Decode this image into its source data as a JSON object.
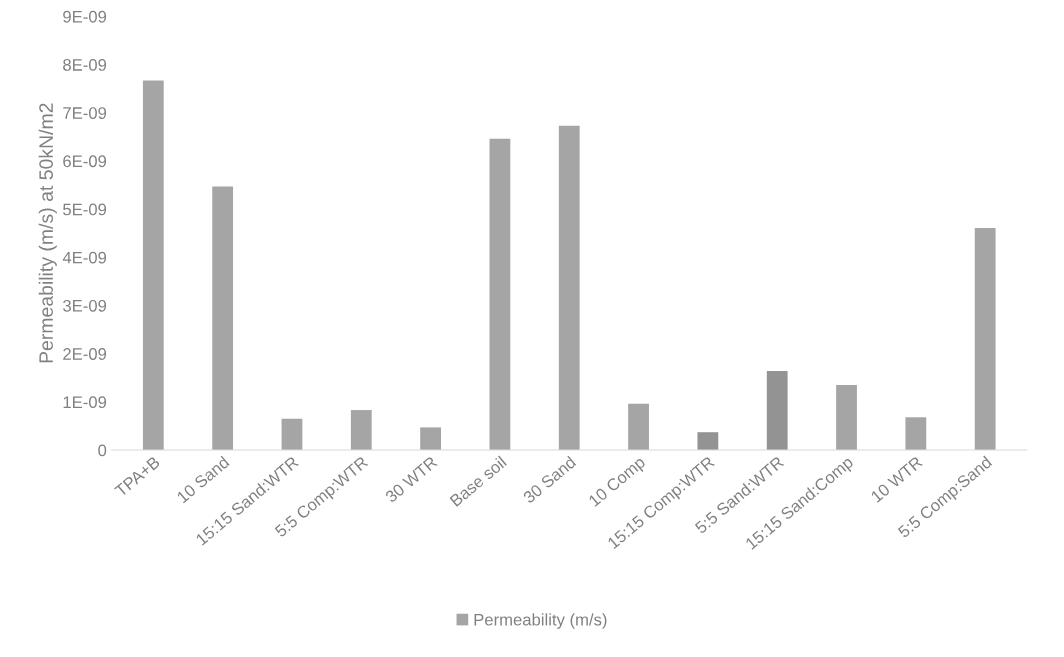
{
  "chart_data": {
    "type": "bar",
    "ylabel": "Permeability (m/s) at 50kN/m2",
    "categories": [
      "TPA+B",
      "10 Sand",
      "15:15 Sand:WTR",
      "5:5 Comp:WTR",
      "30 WTR",
      "Base soil",
      "30 Sand",
      "10 Comp",
      "15:15 Comp:WTR",
      "5:5 Sand:WTR",
      "15:15 Sand:Comp",
      "10 WTR",
      "5:5 Comp:Sand"
    ],
    "series": [
      {
        "name": "Permeability (m/s)",
        "color": "#a5a5a5",
        "colors": [
          "#a5a5a5",
          "#a5a5a5",
          "#a5a5a5",
          "#a5a5a5",
          "#a5a5a5",
          "#a5a5a5",
          "#a5a5a5",
          "#a5a5a5",
          "#939393",
          "#939393",
          "#a5a5a5",
          "#a5a5a5",
          "#a5a5a5"
        ],
        "values": [
          7.67e-09,
          5.47e-09,
          6.5e-10,
          8.3e-10,
          4.7e-10,
          6.46e-09,
          6.73e-09,
          9.6e-10,
          3.7e-10,
          1.64e-09,
          1.35e-09,
          6.8e-10,
          4.61e-09
        ]
      }
    ],
    "ylim": [
      0,
      9e-09
    ],
    "yticks": [
      {
        "value": 0,
        "label": "0"
      },
      {
        "value": 1e-09,
        "label": "1E-09"
      },
      {
        "value": 2e-09,
        "label": "2E-09"
      },
      {
        "value": 3e-09,
        "label": "3E-09"
      },
      {
        "value": 4e-09,
        "label": "4E-09"
      },
      {
        "value": 5e-09,
        "label": "5E-09"
      },
      {
        "value": 6e-09,
        "label": "6E-09"
      },
      {
        "value": 7e-09,
        "label": "7E-09"
      },
      {
        "value": 8e-09,
        "label": "8E-09"
      },
      {
        "value": 9e-09,
        "label": "9E-09"
      }
    ],
    "legend": "bottom"
  }
}
